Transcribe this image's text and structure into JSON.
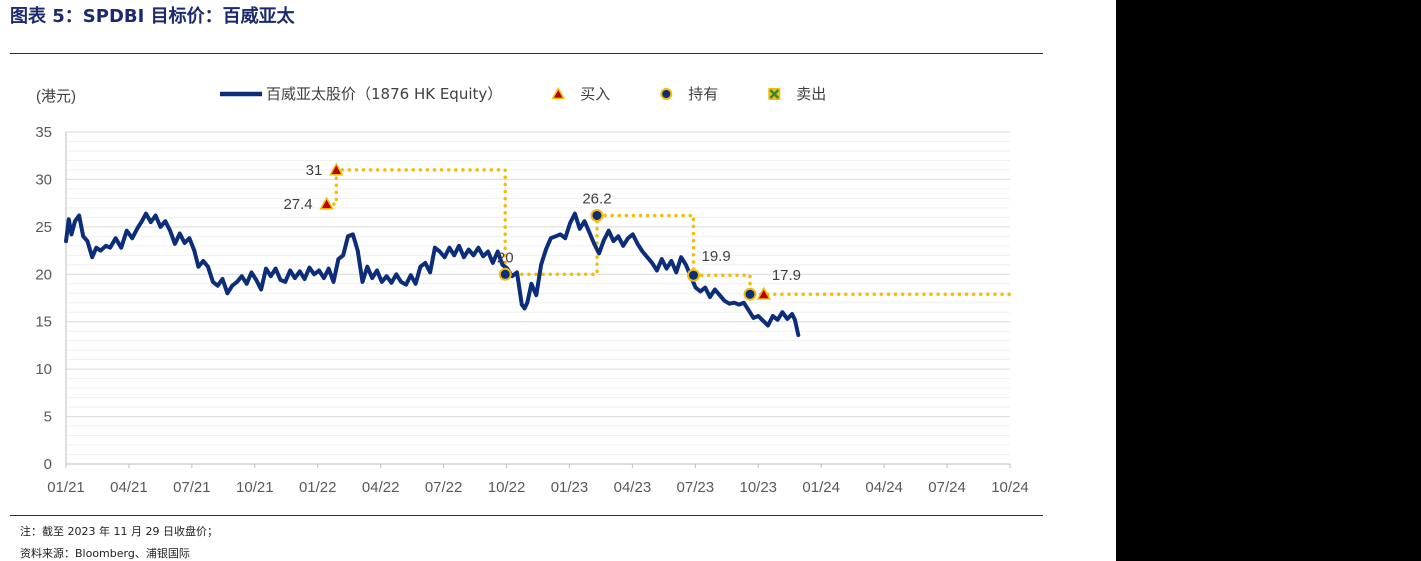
{
  "title": "图表 5：SPDBI 目标价：百威亚太",
  "notes": {
    "note1": "注：截至 2023 年 11 月 29 日收盘价；",
    "note2": "资料来源：Bloomberg、浦银国际"
  },
  "colors": {
    "price_line": "#0b2d7a",
    "target_line": "#f2bd0e",
    "buy_marker": "#c00000",
    "hold_marker": "#0b2d7a",
    "sell_marker": "#2e8b3a",
    "grid": "#d9d9d9"
  },
  "chart_data": {
    "type": "line",
    "ylabel": "(港元)",
    "ylim": [
      0,
      35
    ],
    "yticks": [
      0,
      5,
      10,
      15,
      20,
      25,
      30,
      35
    ],
    "x_tick_labels": [
      "01/21",
      "04/21",
      "07/21",
      "10/21",
      "01/22",
      "04/22",
      "07/22",
      "10/22",
      "01/23",
      "04/23",
      "07/23",
      "10/23",
      "01/24",
      "04/24",
      "07/24",
      "10/24"
    ],
    "grid": true,
    "legend_position": "top",
    "legend": [
      {
        "label": "百威亚太股价（1876 HK Equity）",
        "kind": "line"
      },
      {
        "label": "买入",
        "kind": "buy"
      },
      {
        "label": "持有",
        "kind": "hold"
      },
      {
        "label": "卖出",
        "kind": "sell"
      }
    ],
    "price_series": {
      "name": "百威亚太股价（1876 HK Equity）",
      "points": [
        [
          "2021-01-01",
          23.5
        ],
        [
          "2021-01-05",
          25.8
        ],
        [
          "2021-01-09",
          24.2
        ],
        [
          "2021-01-14",
          25.6
        ],
        [
          "2021-01-20",
          26.2
        ],
        [
          "2021-01-26",
          24.0
        ],
        [
          "2021-02-01",
          23.5
        ],
        [
          "2021-02-08",
          21.8
        ],
        [
          "2021-02-14",
          22.8
        ],
        [
          "2021-02-20",
          22.5
        ],
        [
          "2021-02-28",
          23.0
        ],
        [
          "2021-03-06",
          22.8
        ],
        [
          "2021-03-14",
          23.8
        ],
        [
          "2021-03-22",
          22.8
        ],
        [
          "2021-03-30",
          24.6
        ],
        [
          "2021-04-07",
          23.8
        ],
        [
          "2021-04-15",
          24.9
        ],
        [
          "2021-04-21",
          25.6
        ],
        [
          "2021-04-27",
          26.4
        ],
        [
          "2021-05-04",
          25.5
        ],
        [
          "2021-05-11",
          26.2
        ],
        [
          "2021-05-18",
          25.0
        ],
        [
          "2021-05-25",
          25.6
        ],
        [
          "2021-06-01",
          24.6
        ],
        [
          "2021-06-08",
          23.2
        ],
        [
          "2021-06-15",
          24.3
        ],
        [
          "2021-06-22",
          23.3
        ],
        [
          "2021-06-29",
          23.8
        ],
        [
          "2021-07-06",
          22.5
        ],
        [
          "2021-07-12",
          20.8
        ],
        [
          "2021-07-19",
          21.4
        ],
        [
          "2021-07-26",
          20.8
        ],
        [
          "2021-08-02",
          19.2
        ],
        [
          "2021-08-09",
          18.8
        ],
        [
          "2021-08-16",
          19.5
        ],
        [
          "2021-08-23",
          18.0
        ],
        [
          "2021-08-30",
          18.8
        ],
        [
          "2021-09-06",
          19.2
        ],
        [
          "2021-09-13",
          19.8
        ],
        [
          "2021-09-20",
          19.0
        ],
        [
          "2021-09-27",
          20.2
        ],
        [
          "2021-10-04",
          19.4
        ],
        [
          "2021-10-11",
          18.4
        ],
        [
          "2021-10-18",
          20.6
        ],
        [
          "2021-10-25",
          19.8
        ],
        [
          "2021-11-01",
          20.6
        ],
        [
          "2021-11-08",
          19.4
        ],
        [
          "2021-11-15",
          19.2
        ],
        [
          "2021-11-22",
          20.4
        ],
        [
          "2021-11-29",
          19.6
        ],
        [
          "2021-12-06",
          20.3
        ],
        [
          "2021-12-13",
          19.5
        ],
        [
          "2021-12-20",
          20.7
        ],
        [
          "2021-12-27",
          20.0
        ],
        [
          "2022-01-03",
          20.4
        ],
        [
          "2022-01-10",
          19.6
        ],
        [
          "2022-01-17",
          20.6
        ],
        [
          "2022-01-24",
          19.2
        ],
        [
          "2022-01-31",
          21.6
        ],
        [
          "2022-02-07",
          22.0
        ],
        [
          "2022-02-14",
          24.0
        ],
        [
          "2022-02-21",
          24.2
        ],
        [
          "2022-02-28",
          22.5
        ],
        [
          "2022-03-07",
          19.2
        ],
        [
          "2022-03-14",
          20.8
        ],
        [
          "2022-03-21",
          19.6
        ],
        [
          "2022-03-28",
          20.4
        ],
        [
          "2022-04-04",
          19.2
        ],
        [
          "2022-04-11",
          19.8
        ],
        [
          "2022-04-18",
          19.1
        ],
        [
          "2022-04-25",
          20.0
        ],
        [
          "2022-05-02",
          19.2
        ],
        [
          "2022-05-09",
          18.9
        ],
        [
          "2022-05-16",
          19.9
        ],
        [
          "2022-05-23",
          19.0
        ],
        [
          "2022-05-30",
          20.8
        ],
        [
          "2022-06-06",
          21.2
        ],
        [
          "2022-06-13",
          20.2
        ],
        [
          "2022-06-20",
          22.8
        ],
        [
          "2022-06-27",
          22.4
        ],
        [
          "2022-07-04",
          21.8
        ],
        [
          "2022-07-11",
          22.8
        ],
        [
          "2022-07-18",
          22.0
        ],
        [
          "2022-07-25",
          23.0
        ],
        [
          "2022-08-01",
          21.8
        ],
        [
          "2022-08-08",
          22.6
        ],
        [
          "2022-08-15",
          22.0
        ],
        [
          "2022-08-22",
          22.8
        ],
        [
          "2022-08-29",
          21.9
        ],
        [
          "2022-09-05",
          22.4
        ],
        [
          "2022-09-12",
          21.2
        ],
        [
          "2022-09-19",
          22.4
        ],
        [
          "2022-09-26",
          21.0
        ],
        [
          "2022-10-03",
          20.6
        ],
        [
          "2022-10-10",
          19.8
        ],
        [
          "2022-10-17",
          20.2
        ],
        [
          "2022-10-24",
          16.8
        ],
        [
          "2022-10-28",
          16.4
        ],
        [
          "2022-11-01",
          17.0
        ],
        [
          "2022-11-07",
          19.0
        ],
        [
          "2022-11-14",
          17.8
        ],
        [
          "2022-11-21",
          21.0
        ],
        [
          "2022-11-28",
          22.6
        ],
        [
          "2022-12-05",
          23.8
        ],
        [
          "2022-12-12",
          24.0
        ],
        [
          "2022-12-19",
          24.2
        ],
        [
          "2022-12-26",
          23.8
        ],
        [
          "2023-01-02",
          25.4
        ],
        [
          "2023-01-09",
          26.4
        ],
        [
          "2023-01-16",
          24.8
        ],
        [
          "2023-01-23",
          25.6
        ],
        [
          "2023-01-30",
          24.4
        ],
        [
          "2023-02-06",
          23.2
        ],
        [
          "2023-02-13",
          22.2
        ],
        [
          "2023-02-20",
          23.6
        ],
        [
          "2023-02-27",
          24.6
        ],
        [
          "2023-03-06",
          23.5
        ],
        [
          "2023-03-13",
          24.0
        ],
        [
          "2023-03-20",
          23.0
        ],
        [
          "2023-03-27",
          23.8
        ],
        [
          "2023-04-03",
          24.2
        ],
        [
          "2023-04-10",
          23.2
        ],
        [
          "2023-04-17",
          22.4
        ],
        [
          "2023-04-24",
          21.8
        ],
        [
          "2023-05-01",
          21.2
        ],
        [
          "2023-05-08",
          20.4
        ],
        [
          "2023-05-15",
          21.6
        ],
        [
          "2023-05-22",
          20.6
        ],
        [
          "2023-05-29",
          21.4
        ],
        [
          "2023-06-05",
          20.2
        ],
        [
          "2023-06-12",
          21.8
        ],
        [
          "2023-06-19",
          21.0
        ],
        [
          "2023-06-26",
          19.8
        ],
        [
          "2023-07-03",
          18.6
        ],
        [
          "2023-07-10",
          18.2
        ],
        [
          "2023-07-17",
          18.6
        ],
        [
          "2023-07-24",
          17.6
        ],
        [
          "2023-07-31",
          18.4
        ],
        [
          "2023-08-07",
          17.8
        ],
        [
          "2023-08-14",
          17.2
        ],
        [
          "2023-08-21",
          16.9
        ],
        [
          "2023-08-28",
          17.0
        ],
        [
          "2023-09-04",
          16.8
        ],
        [
          "2023-09-11",
          17.0
        ],
        [
          "2023-09-18",
          16.2
        ],
        [
          "2023-09-25",
          15.4
        ],
        [
          "2023-10-02",
          15.6
        ],
        [
          "2023-10-09",
          15.1
        ],
        [
          "2023-10-16",
          14.6
        ],
        [
          "2023-10-23",
          15.6
        ],
        [
          "2023-10-30",
          15.2
        ],
        [
          "2023-11-06",
          16.0
        ],
        [
          "2023-11-13",
          15.3
        ],
        [
          "2023-11-20",
          15.8
        ],
        [
          "2023-11-24",
          15.2
        ],
        [
          "2023-11-29",
          13.6
        ]
      ]
    },
    "target_path": [
      [
        "2022-01-14",
        27.4
      ],
      [
        "2022-01-28",
        27.4
      ],
      [
        "2022-01-28",
        31
      ],
      [
        "2022-09-30",
        31
      ],
      [
        "2022-09-30",
        20
      ],
      [
        "2023-02-10",
        20
      ],
      [
        "2023-02-10",
        26.2
      ],
      [
        "2023-06-30",
        26.2
      ],
      [
        "2023-06-30",
        19.9
      ],
      [
        "2023-09-20",
        19.9
      ],
      [
        "2023-09-20",
        17.9
      ],
      [
        "2024-10-01",
        17.9
      ]
    ],
    "rating_markers": [
      {
        "date": "2022-01-14",
        "value": 27.4,
        "rating": "buy",
        "label": "27.4",
        "label_side": "left"
      },
      {
        "date": "2022-01-28",
        "value": 31,
        "rating": "buy",
        "label": "31",
        "label_side": "left"
      },
      {
        "date": "2022-09-30",
        "value": 20,
        "rating": "hold",
        "label": "20",
        "label_side": "top"
      },
      {
        "date": "2023-02-10",
        "value": 26.2,
        "rating": "hold",
        "label": "26.2",
        "label_side": "top"
      },
      {
        "date": "2023-06-30",
        "value": 19.9,
        "rating": "hold",
        "label": "19.9",
        "label_side": "top-right"
      },
      {
        "date": "2023-09-20",
        "value": 17.9,
        "rating": "hold",
        "label": "",
        "label_side": ""
      },
      {
        "date": "2023-10-10",
        "value": 17.9,
        "rating": "buy",
        "label": "17.9",
        "label_side": "top-right"
      }
    ]
  }
}
